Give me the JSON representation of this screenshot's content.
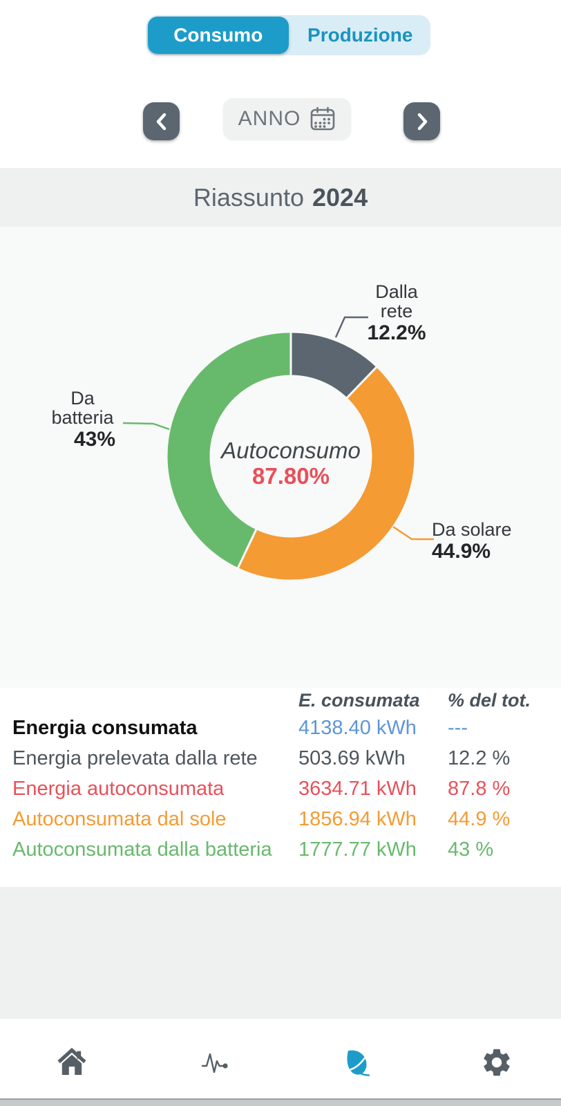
{
  "header": {
    "tabs": [
      {
        "label": "Consumo",
        "active": true
      },
      {
        "label": "Produzione",
        "active": false
      }
    ],
    "period": {
      "label": "ANNO"
    }
  },
  "title": {
    "prefix": "Riassunto",
    "year": "2024"
  },
  "chart_data": {
    "type": "donut",
    "title": "Riassunto 2024",
    "start_angle_deg": 0,
    "direction": "clockwise",
    "center": {
      "label": "Autoconsumo",
      "value": "87.80%"
    },
    "slices": [
      {
        "name": "Dalla rete",
        "value": 12.2,
        "pct_label": "12.2%",
        "color": "#5b6670",
        "line1": "Dalla",
        "line2": "rete"
      },
      {
        "name": "Da solare",
        "value": 44.9,
        "pct_label": "44.9%",
        "color": "#f49b33",
        "line1": "Da solare"
      },
      {
        "name": "Da batteria",
        "value": 43,
        "pct_label": "43%",
        "color": "#67ba6b",
        "line1": "Da",
        "line2": "batteria"
      }
    ]
  },
  "table": {
    "headers": {
      "value": "E. consumata",
      "pct": "% del tot."
    },
    "rows": [
      {
        "label": "Energia consumata",
        "value": "4138.40 kWh",
        "pct": "---",
        "label_color": "#111111",
        "label_bold": true,
        "value_color": "#5d96d6",
        "pct_color": "#5d96d6"
      },
      {
        "label": "Energia prelevata dalla rete",
        "value": "503.69 kWh",
        "pct": "12.2 %",
        "label_color": "#4d565e",
        "value_color": "#4d565e",
        "pct_color": "#4d565e"
      },
      {
        "label": "Energia autoconsumata",
        "value": "3634.71 kWh",
        "pct": "87.8 %",
        "label_color": "#e8505a",
        "value_color": "#e8505a",
        "pct_color": "#e8505a"
      },
      {
        "label": "Autoconsumata dal sole",
        "value": "1856.94 kWh",
        "pct": "44.9 %",
        "label_color": "#f49b33",
        "value_color": "#f49b33",
        "pct_color": "#f49b33"
      },
      {
        "label": "Autoconsumata dalla batteria",
        "value": "1777.77 kWh",
        "pct": "43 %",
        "label_color": "#68b96c",
        "value_color": "#68b96c",
        "pct_color": "#68b96c"
      }
    ]
  },
  "bottom_nav": {
    "items": [
      {
        "name": "home",
        "active": false
      },
      {
        "name": "activity",
        "active": false
      },
      {
        "name": "leaf",
        "active": true
      },
      {
        "name": "settings",
        "active": false
      }
    ],
    "active_color": "#1e9cc9",
    "inactive_color": "#565f66"
  },
  "colors": {
    "accent_blue": "#1e9cc9",
    "toggle_bg": "#d9edf6",
    "slate": "#5b6670",
    "red": "#e8505a",
    "orange": "#f49b33",
    "green": "#67ba6b",
    "value_blue": "#5d96d6"
  }
}
